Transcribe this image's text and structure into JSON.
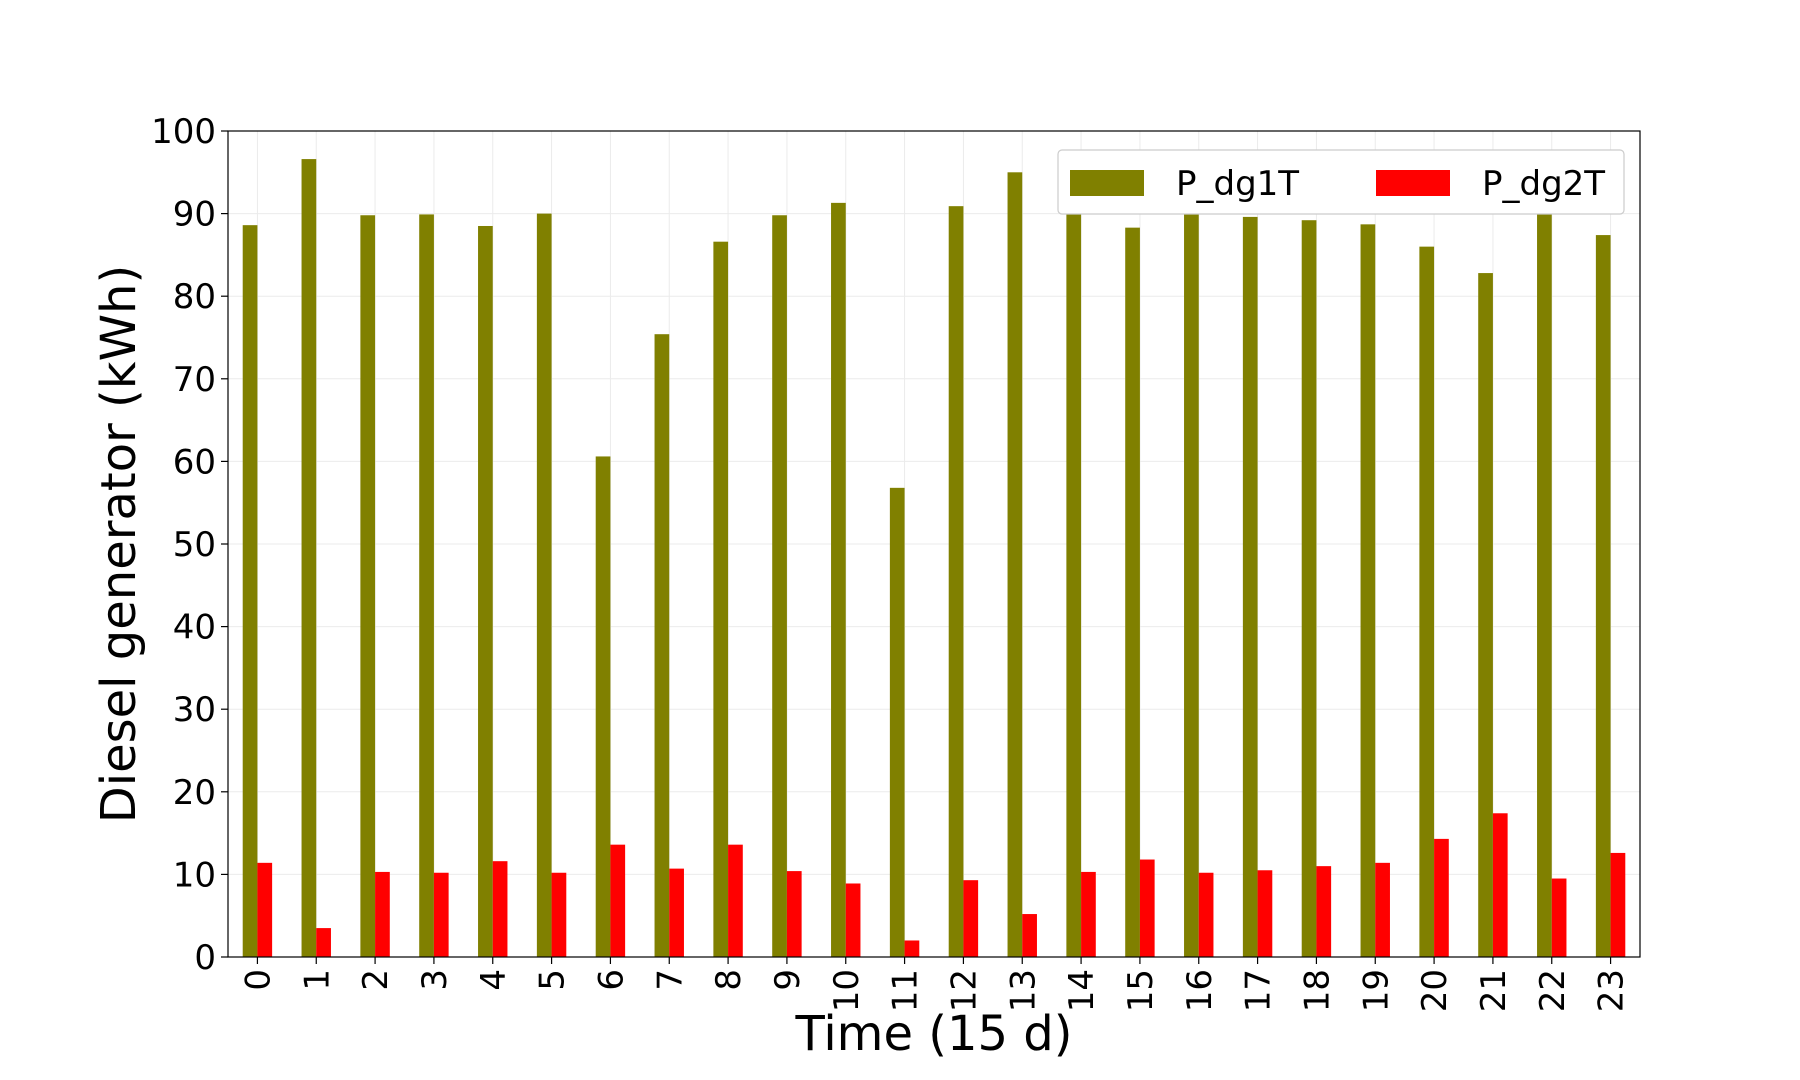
{
  "chart_data": {
    "type": "bar",
    "xlabel": "Time (15 d)",
    "ylabel": "Diesel generator  (kWh)",
    "ylim": [
      0,
      100
    ],
    "yticks": [
      0,
      10,
      20,
      30,
      40,
      50,
      60,
      70,
      80,
      90,
      100
    ],
    "categories": [
      "0",
      "1",
      "2",
      "3",
      "4",
      "5",
      "6",
      "7",
      "8",
      "9",
      "10",
      "11",
      "12",
      "13",
      "14",
      "15",
      "16",
      "17",
      "18",
      "19",
      "20",
      "21",
      "22",
      "23"
    ],
    "grid": true,
    "legend": {
      "placement": "top-right",
      "columns": 2
    },
    "series": [
      {
        "name": "P_dg1T",
        "color": "#808000",
        "values": [
          88.6,
          96.6,
          89.8,
          89.9,
          88.5,
          90.0,
          60.6,
          75.4,
          86.6,
          89.8,
          91.3,
          56.8,
          90.9,
          95.0,
          89.9,
          88.3,
          89.9,
          89.6,
          89.2,
          88.7,
          86.0,
          82.8,
          90.6,
          87.4
        ]
      },
      {
        "name": "P_dg2T",
        "color": "#ff0000",
        "values": [
          11.4,
          3.5,
          10.3,
          10.2,
          11.6,
          10.2,
          13.6,
          10.7,
          13.6,
          10.4,
          8.9,
          2.0,
          9.3,
          5.2,
          10.3,
          11.8,
          10.2,
          10.5,
          11.0,
          11.4,
          14.3,
          17.4,
          9.5,
          12.6
        ]
      }
    ]
  }
}
